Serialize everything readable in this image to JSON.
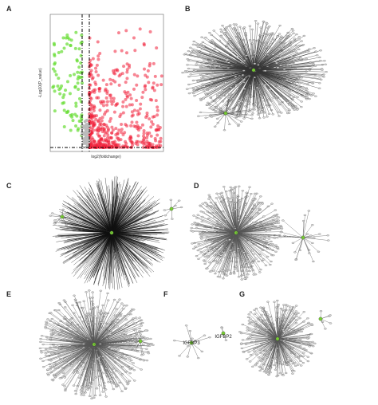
{
  "panels": [
    {
      "label": "A",
      "x_label": "log2(foldchange)",
      "y_label": "-Log10(P_value)"
    },
    {
      "label": "B"
    },
    {
      "label": "C"
    },
    {
      "label": "D"
    },
    {
      "label": "E"
    },
    {
      "label": "F",
      "nodes": [
        "IGFBP3",
        "IGFBP2"
      ]
    },
    {
      "label": "G"
    }
  ]
}
